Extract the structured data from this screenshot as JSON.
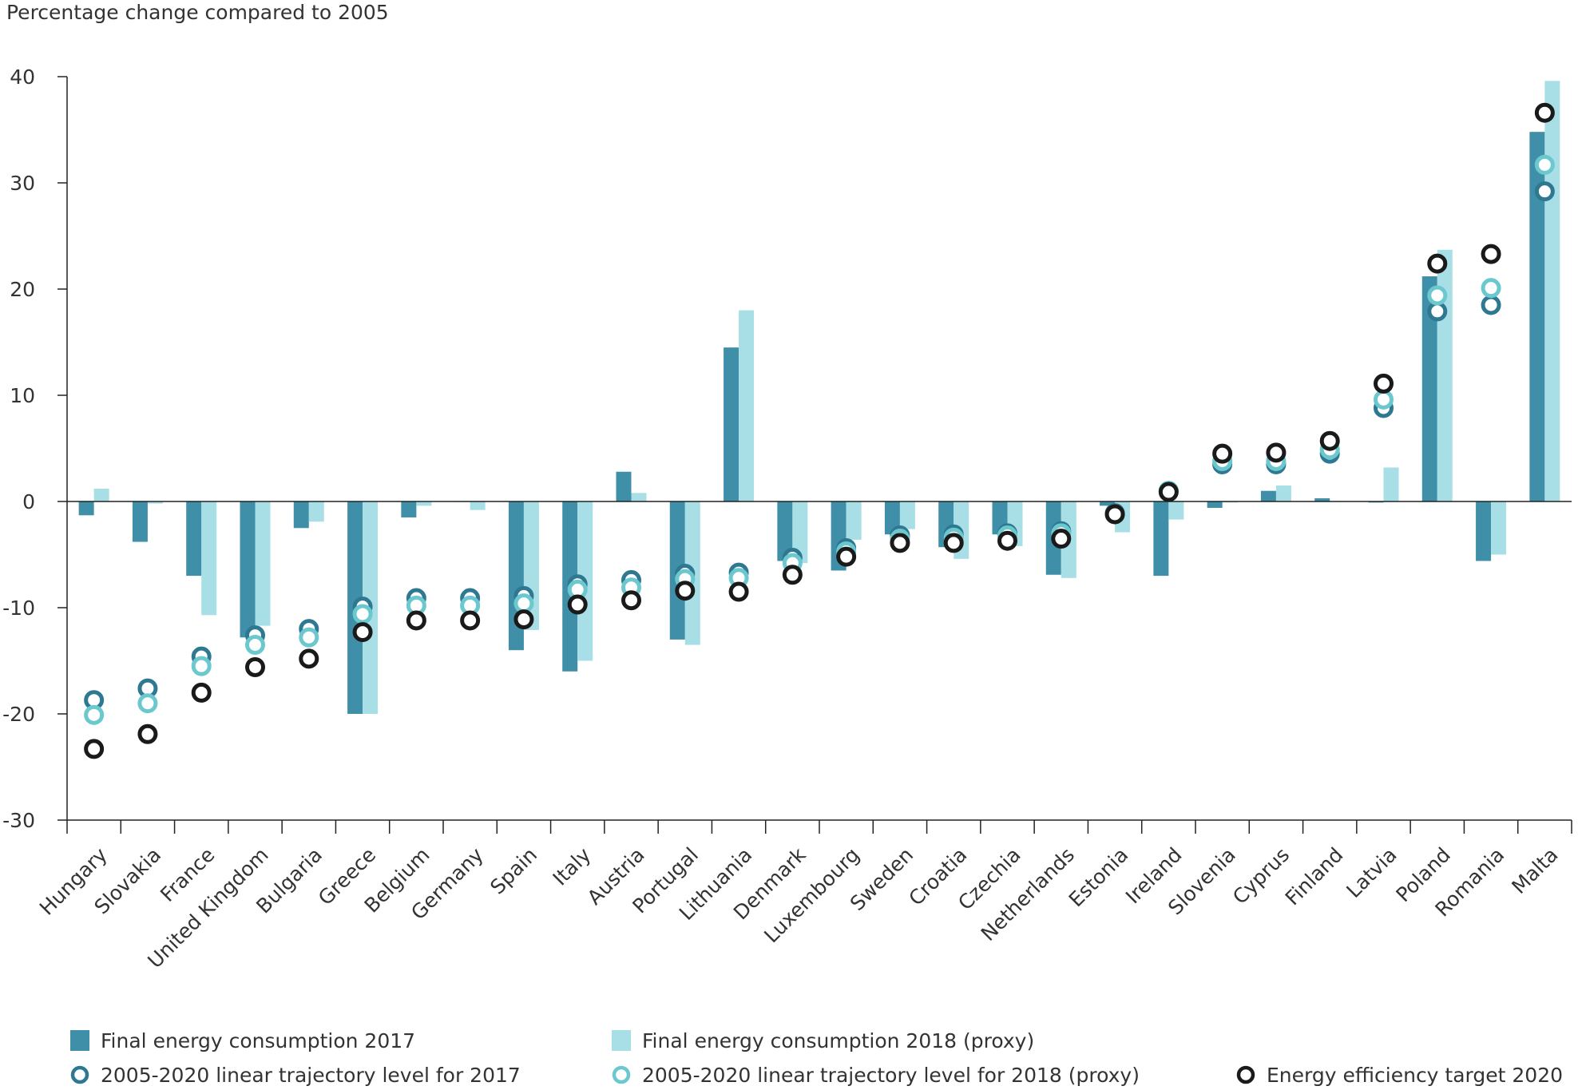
{
  "chart_data": {
    "type": "bar",
    "ylabel": "Percentage change compared to 2005",
    "ylim": [
      -30,
      40
    ],
    "yticks": [
      40,
      30,
      20,
      10,
      0,
      -10,
      -20,
      -30
    ],
    "ytick_labels": [
      "40",
      "30",
      "20",
      "10",
      "0",
      "-10",
      "-20",
      "-30"
    ],
    "grid": false,
    "legend_position": "bottom",
    "categories": [
      "Hungary",
      "Slovakia",
      "France",
      "United Kingdom",
      "Bulgaria",
      "Greece",
      "Belgium",
      "Germany",
      "Spain",
      "Italy",
      "Austria",
      "Portugal",
      "Lithuania",
      "Denmark",
      "Luxembourg",
      "Sweden",
      "Croatia",
      "Czechia",
      "Netherlands",
      "Estonia",
      "Ireland",
      "Slovenia",
      "Cyprus",
      "Finland",
      "Latvia",
      "Poland",
      "Romania",
      "Malta"
    ],
    "series": [
      {
        "name": "Final energy consumption 2017",
        "kind": "bar",
        "color": "#3f8fa8",
        "values": [
          -1.3,
          -3.8,
          -7.0,
          -12.8,
          -2.5,
          -20.0,
          -1.5,
          0.0,
          -14.0,
          -16.0,
          2.8,
          -13.0,
          14.5,
          -5.6,
          -6.5,
          -3.1,
          -4.3,
          -3.1,
          -6.9,
          -0.4,
          -7.0,
          -0.6,
          1.0,
          0.3,
          -0.1,
          21.2,
          -5.6,
          34.8
        ]
      },
      {
        "name": "Final energy consumption 2018 (proxy)",
        "kind": "bar",
        "color": "#a8dfe6",
        "values": [
          1.2,
          -0.2,
          -10.7,
          -11.7,
          -1.9,
          -20.0,
          -0.4,
          -0.8,
          -12.1,
          -15.0,
          0.8,
          -13.5,
          18.0,
          -5.8,
          -3.6,
          -2.6,
          -5.4,
          -4.2,
          -7.2,
          -2.9,
          -1.7,
          -0.1,
          1.5,
          0.0,
          3.2,
          23.7,
          -5.0,
          39.6
        ]
      },
      {
        "name": "2005-2020 linear trajectory level for 2017",
        "kind": "marker",
        "color": "#2f7891",
        "values": [
          -18.7,
          -17.6,
          -14.6,
          -12.6,
          -12.0,
          -9.9,
          -9.1,
          -9.1,
          -8.9,
          -7.8,
          -7.4,
          -6.8,
          -6.7,
          -5.3,
          -4.4,
          -3.2,
          -3.1,
          -3.0,
          -2.8,
          -1.1,
          1.0,
          3.5,
          3.5,
          4.5,
          8.8,
          17.9,
          18.5,
          29.2
        ]
      },
      {
        "name": "2005-2020 linear trajectory level for 2018 (proxy)",
        "kind": "marker",
        "color": "#6cc8cf",
        "values": [
          -20.1,
          -19.0,
          -15.5,
          -13.5,
          -12.8,
          -10.6,
          -9.8,
          -9.8,
          -9.6,
          -8.3,
          -8.1,
          -7.3,
          -7.2,
          -5.8,
          -4.7,
          -3.5,
          -3.4,
          -3.2,
          -3.0,
          -1.2,
          1.0,
          3.8,
          3.8,
          4.9,
          9.6,
          19.4,
          20.1,
          31.7
        ]
      },
      {
        "name": "Energy efficiency target 2020",
        "kind": "marker",
        "color": "#1a1a1a",
        "values": [
          -23.3,
          -21.9,
          -18.0,
          -15.6,
          -14.8,
          -12.3,
          -11.2,
          -11.2,
          -11.1,
          -9.7,
          -9.3,
          -8.4,
          -8.5,
          -6.9,
          -5.2,
          -3.9,
          -3.9,
          -3.7,
          -3.5,
          -1.2,
          0.9,
          4.5,
          4.6,
          5.7,
          11.1,
          22.4,
          23.3,
          36.6
        ]
      }
    ]
  }
}
